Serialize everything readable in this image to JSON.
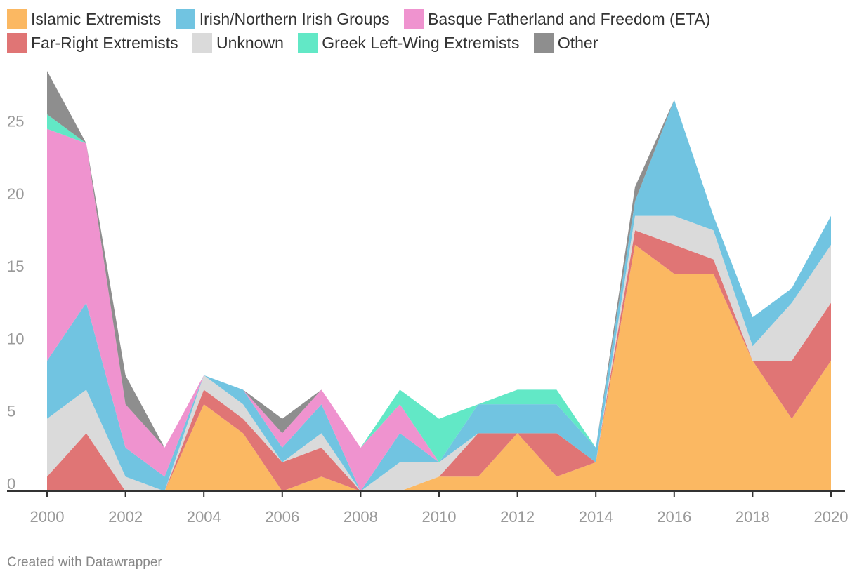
{
  "chart_data": {
    "type": "area",
    "stacked": true,
    "x": [
      2000,
      2001,
      2002,
      2003,
      2004,
      2005,
      2006,
      2007,
      2008,
      2009,
      2010,
      2011,
      2012,
      2013,
      2014,
      2015,
      2016,
      2017,
      2018,
      2019,
      2020
    ],
    "series": [
      {
        "name": "Islamic Extremists",
        "color": "#fbb862",
        "values": [
          0,
          0,
          0,
          0,
          6,
          4,
          0,
          1,
          0,
          0,
          1,
          1,
          4,
          1,
          2,
          17,
          15,
          15,
          9,
          5,
          9
        ]
      },
      {
        "name": "Far-Right Extremists",
        "color": "#e07575",
        "values": [
          1,
          4,
          0,
          0,
          1,
          1,
          2,
          2,
          0,
          0,
          0,
          3,
          0,
          3,
          0,
          1,
          2,
          1,
          0,
          4,
          4
        ]
      },
      {
        "name": "Unknown",
        "color": "#dadada",
        "values": [
          4,
          3,
          1,
          0,
          1,
          1,
          0,
          1,
          0,
          2,
          1,
          0,
          0,
          0,
          0,
          1,
          2,
          2,
          1,
          4,
          4
        ]
      },
      {
        "name": "Irish/Northern Irish Groups",
        "color": "#71c4e1",
        "values": [
          4,
          6,
          2,
          1,
          0,
          1,
          1,
          2,
          0,
          2,
          0,
          2,
          2,
          2,
          1,
          1,
          8,
          1,
          2,
          1,
          2
        ]
      },
      {
        "name": "Basque Fatherland and Freedom (ETA)",
        "color": "#ef93cf",
        "values": [
          16,
          11,
          3,
          2,
          0,
          0,
          1,
          1,
          3,
          2,
          0,
          0,
          0,
          0,
          0,
          0,
          0,
          0,
          0,
          0,
          0
        ]
      },
      {
        "name": "Greek Left-Wing Extremists",
        "color": "#62e8c6",
        "values": [
          1,
          0,
          0,
          0,
          0,
          0,
          0,
          0,
          0,
          1,
          3,
          0,
          1,
          1,
          0,
          0,
          0,
          0,
          0,
          0,
          0
        ]
      },
      {
        "name": "Other",
        "color": "#8e8e8e",
        "values": [
          3,
          0,
          2,
          0,
          0,
          0,
          1,
          0,
          0,
          0,
          0,
          0,
          0,
          0,
          0,
          1,
          0,
          0,
          0,
          0,
          0
        ]
      }
    ],
    "legend": [
      {
        "name": "Islamic Extremists",
        "color": "#fbb862"
      },
      {
        "name": "Irish/Northern Irish Groups",
        "color": "#71c4e1"
      },
      {
        "name": "Basque Fatherland and Freedom (ETA)",
        "color": "#ef93cf"
      },
      {
        "name": "Far-Right Extremists",
        "color": "#e07575"
      },
      {
        "name": "Unknown",
        "color": "#dadada"
      },
      {
        "name": "Greek Left-Wing Extremists",
        "color": "#62e8c6"
      },
      {
        "name": "Other",
        "color": "#8e8e8e"
      }
    ],
    "x_ticks": [
      2000,
      2002,
      2004,
      2006,
      2008,
      2010,
      2012,
      2014,
      2016,
      2018,
      2020
    ],
    "y_ticks": [
      0,
      5,
      10,
      15,
      20,
      25
    ],
    "ylim": [
      0,
      29
    ],
    "xlim": [
      2000,
      2020
    ],
    "legend_position": "top",
    "grid": false
  },
  "footer": {
    "credit": "Created with Datawrapper"
  },
  "colors": {
    "axis": "#333333",
    "tick_text": "#999999"
  }
}
